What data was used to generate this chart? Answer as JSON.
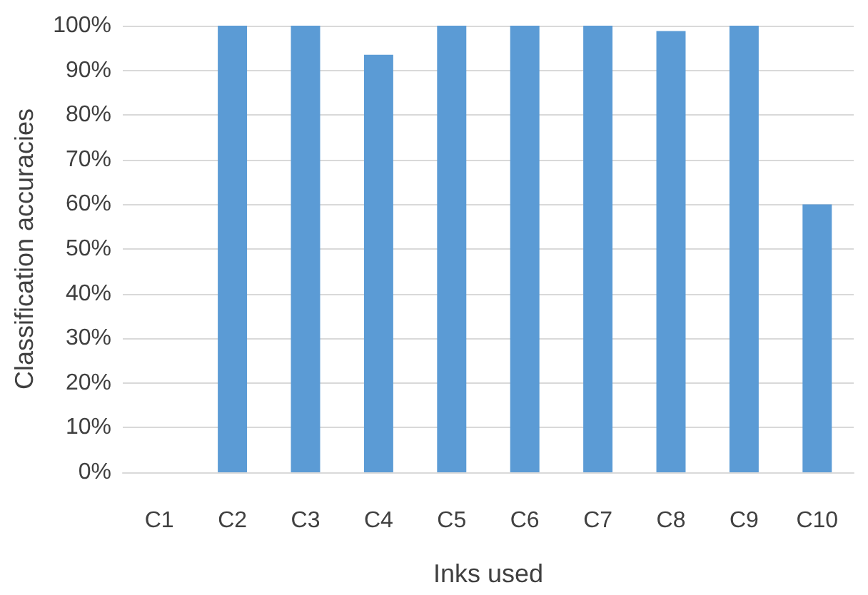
{
  "chart_data": {
    "type": "bar",
    "xlabel": "Inks used",
    "ylabel": "Classification accuracies",
    "categories": [
      "C1",
      "C2",
      "C3",
      "C4",
      "C5",
      "C6",
      "C7",
      "C8",
      "C9",
      "C10"
    ],
    "values": [
      0,
      100,
      100,
      93.5,
      100,
      100,
      100,
      98.8,
      100,
      60
    ],
    "color": "#5b9bd5",
    "ylim": [
      0,
      100
    ],
    "yticks": [
      {
        "value": 0,
        "label": "0%"
      },
      {
        "value": 10,
        "label": "10%"
      },
      {
        "value": 20,
        "label": "20%"
      },
      {
        "value": 30,
        "label": "30%"
      },
      {
        "value": 40,
        "label": "40%"
      },
      {
        "value": 50,
        "label": "50%"
      },
      {
        "value": 60,
        "label": "60%"
      },
      {
        "value": 70,
        "label": "70%"
      },
      {
        "value": 80,
        "label": "80%"
      },
      {
        "value": 90,
        "label": "90%"
      },
      {
        "value": 100,
        "label": "100%"
      }
    ],
    "grid": "y"
  }
}
